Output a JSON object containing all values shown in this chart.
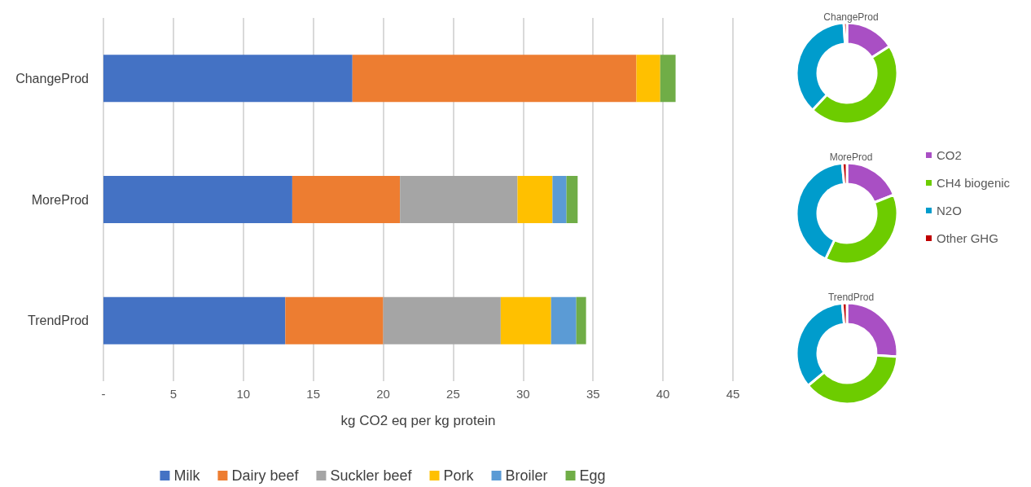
{
  "chart_data": [
    {
      "type": "bar",
      "orientation": "horizontal",
      "stacked": true,
      "categories": [
        "ChangeProd",
        "MoreProd",
        "TrendProd"
      ],
      "xlabel": "kg CO2 eq per kg protein",
      "xlim": [
        0,
        45
      ],
      "xticks": [
        {
          "value": 0,
          "label": "-"
        },
        5,
        10,
        15,
        20,
        25,
        30,
        35,
        40,
        45
      ],
      "grid": "x",
      "legend": "bottom",
      "series": [
        {
          "name": "Milk",
          "color": "#4472c4",
          "values": [
            17.8,
            13.5,
            13.0
          ]
        },
        {
          "name": "Dairy beef",
          "color": "#ed7d31",
          "values": [
            20.3,
            7.7,
            7.0
          ]
        },
        {
          "name": "Suckler beef",
          "color": "#a5a5a5",
          "values": [
            0,
            8.4,
            8.4
          ]
        },
        {
          "name": "Pork",
          "color": "#ffc000",
          "values": [
            1.7,
            2.5,
            3.6
          ]
        },
        {
          "name": "Broiler",
          "color": "#5b9bd5",
          "values": [
            0,
            1.0,
            1.8
          ]
        },
        {
          "name": "Egg",
          "color": "#70ad47",
          "values": [
            1.1,
            0.8,
            0.7
          ]
        }
      ]
    },
    {
      "type": "donut",
      "categories": [
        "CO2",
        "CH4 biogenic",
        "N2O",
        "Other GHG"
      ],
      "colors": [
        "#a94fc4",
        "#6dcc00",
        "#009ccc",
        "#c00000"
      ],
      "legend": "right",
      "series": [
        {
          "name": "ChangeProd",
          "values": [
            16,
            46,
            37,
            1
          ]
        },
        {
          "name": "MoreProd",
          "values": [
            19,
            38,
            41.5,
            1.5
          ]
        },
        {
          "name": "TrendProd",
          "values": [
            26,
            38,
            34.5,
            1.5
          ]
        }
      ]
    }
  ]
}
